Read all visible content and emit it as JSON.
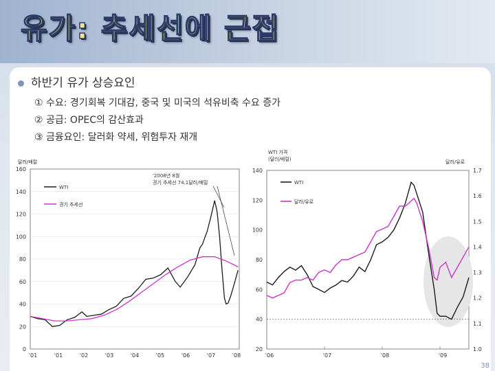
{
  "slide": {
    "title": "유가: 추세선에 근접",
    "bullet": "하반기 유가 상승요인",
    "points": [
      "① 수요: 경기회복 기대감, 중국 및 미국의 석유비축 수요 증가",
      "② 공급: OPEC의 감산효과",
      "③ 금융요인: 달러화 약세, 위험투자 재개"
    ],
    "page_number": "38"
  },
  "chart_data": [
    {
      "type": "line",
      "unit_label": "달러/배럴",
      "ylim": [
        0,
        160
      ],
      "yticks": [
        0,
        20,
        40,
        60,
        80,
        100,
        120,
        140,
        160
      ],
      "xticks": [
        "'01",
        "'01",
        "'02",
        "'03",
        "'04",
        "'05",
        "'06",
        "'07",
        "'08"
      ],
      "annotation": [
        "'2008년 8월",
        "경기 추세선 74.1달러/배럴"
      ],
      "series": [
        {
          "name": "WTI",
          "color": "#1a1a1a",
          "x": [
            2001.0,
            2001.3,
            2001.6,
            2001.9,
            2002.2,
            2002.5,
            2002.8,
            2003.1,
            2003.3,
            2003.6,
            2003.9,
            2004.2,
            2004.5,
            2004.8,
            2005.1,
            2005.4,
            2005.7,
            2006.0,
            2006.3,
            2006.6,
            2006.9,
            2007.1,
            2007.4,
            2007.7,
            2007.9,
            2008.0,
            2008.2,
            2008.35,
            2008.5,
            2008.6,
            2008.7,
            2008.8,
            2008.9,
            2008.97,
            2009.05,
            2009.15,
            2009.3,
            2009.45
          ],
          "values": [
            29,
            27,
            26,
            20,
            21,
            26,
            28,
            33,
            29,
            30,
            31,
            35,
            38,
            45,
            47,
            54,
            62,
            63,
            66,
            72,
            60,
            55,
            64,
            75,
            90,
            93,
            105,
            118,
            132,
            122,
            100,
            70,
            45,
            40,
            41,
            47,
            58,
            70
          ]
        },
        {
          "name": "경기 추세선",
          "color": "#cc33cc",
          "x": [
            2001.0,
            2002.0,
            2002.5,
            2003.0,
            2003.5,
            2004.0,
            2004.5,
            2005.0,
            2005.5,
            2006.0,
            2006.5,
            2007.0,
            2007.5,
            2008.0,
            2008.5,
            2009.0,
            2009.45
          ],
          "values": [
            29,
            25,
            25,
            26,
            27,
            30,
            35,
            42,
            50,
            58,
            66,
            73,
            79,
            82,
            82,
            78,
            73
          ]
        }
      ],
      "xlim": [
        2001.0,
        2009.5
      ]
    },
    {
      "type": "line",
      "unit_label_left": [
        "WTI 가격",
        "(달러/배럴)"
      ],
      "unit_label_right": "달러/유로",
      "ylim_left": [
        20,
        140
      ],
      "yticks_left": [
        20,
        40,
        60,
        80,
        100,
        120,
        140
      ],
      "ylim_right": [
        1.0,
        1.7
      ],
      "yticks_right": [
        1.0,
        1.1,
        1.2,
        1.3,
        1.4,
        1.5,
        1.6,
        1.7
      ],
      "xticks": [
        "'06",
        "'07",
        "'08",
        "'09"
      ],
      "xtick_positions": [
        2006.0,
        2007.0,
        2008.0,
        2009.0
      ],
      "reference_line": 40,
      "series": [
        {
          "name": "WTI",
          "axis": "left",
          "color": "#1a1a1a",
          "x": [
            2006.0,
            2006.1,
            2006.2,
            2006.3,
            2006.4,
            2006.5,
            2006.6,
            2006.7,
            2006.8,
            2006.9,
            2007.0,
            2007.1,
            2007.2,
            2007.3,
            2007.4,
            2007.5,
            2007.6,
            2007.7,
            2007.8,
            2007.9,
            2008.0,
            2008.1,
            2008.2,
            2008.3,
            2008.4,
            2008.5,
            2008.55,
            2008.6,
            2008.7,
            2008.8,
            2008.9,
            2008.95,
            2009.0,
            2009.1,
            2009.2,
            2009.3,
            2009.4,
            2009.5
          ],
          "values": [
            65,
            63,
            68,
            72,
            75,
            73,
            76,
            70,
            62,
            60,
            58,
            61,
            63,
            66,
            65,
            69,
            75,
            72,
            80,
            90,
            92,
            95,
            100,
            108,
            118,
            132,
            130,
            124,
            112,
            85,
            60,
            44,
            42,
            42,
            40,
            48,
            55,
            68
          ]
        },
        {
          "name": "달러/유로",
          "axis": "right",
          "color": "#cc33cc",
          "x": [
            2006.0,
            2006.1,
            2006.2,
            2006.3,
            2006.4,
            2006.5,
            2006.6,
            2006.7,
            2006.8,
            2006.9,
            2007.0,
            2007.1,
            2007.2,
            2007.3,
            2007.4,
            2007.5,
            2007.6,
            2007.7,
            2007.8,
            2007.9,
            2008.0,
            2008.1,
            2008.2,
            2008.3,
            2008.4,
            2008.5,
            2008.55,
            2008.6,
            2008.7,
            2008.8,
            2008.9,
            2008.95,
            2009.0,
            2009.1,
            2009.2,
            2009.3,
            2009.4,
            2009.5
          ],
          "values": [
            1.21,
            1.2,
            1.21,
            1.22,
            1.26,
            1.27,
            1.27,
            1.28,
            1.27,
            1.3,
            1.31,
            1.3,
            1.33,
            1.35,
            1.35,
            1.36,
            1.37,
            1.38,
            1.42,
            1.46,
            1.47,
            1.48,
            1.52,
            1.56,
            1.56,
            1.58,
            1.59,
            1.57,
            1.5,
            1.4,
            1.28,
            1.27,
            1.32,
            1.34,
            1.28,
            1.32,
            1.36,
            1.4
          ]
        }
      ],
      "xlim": [
        2006.0,
        2009.5
      ]
    }
  ]
}
